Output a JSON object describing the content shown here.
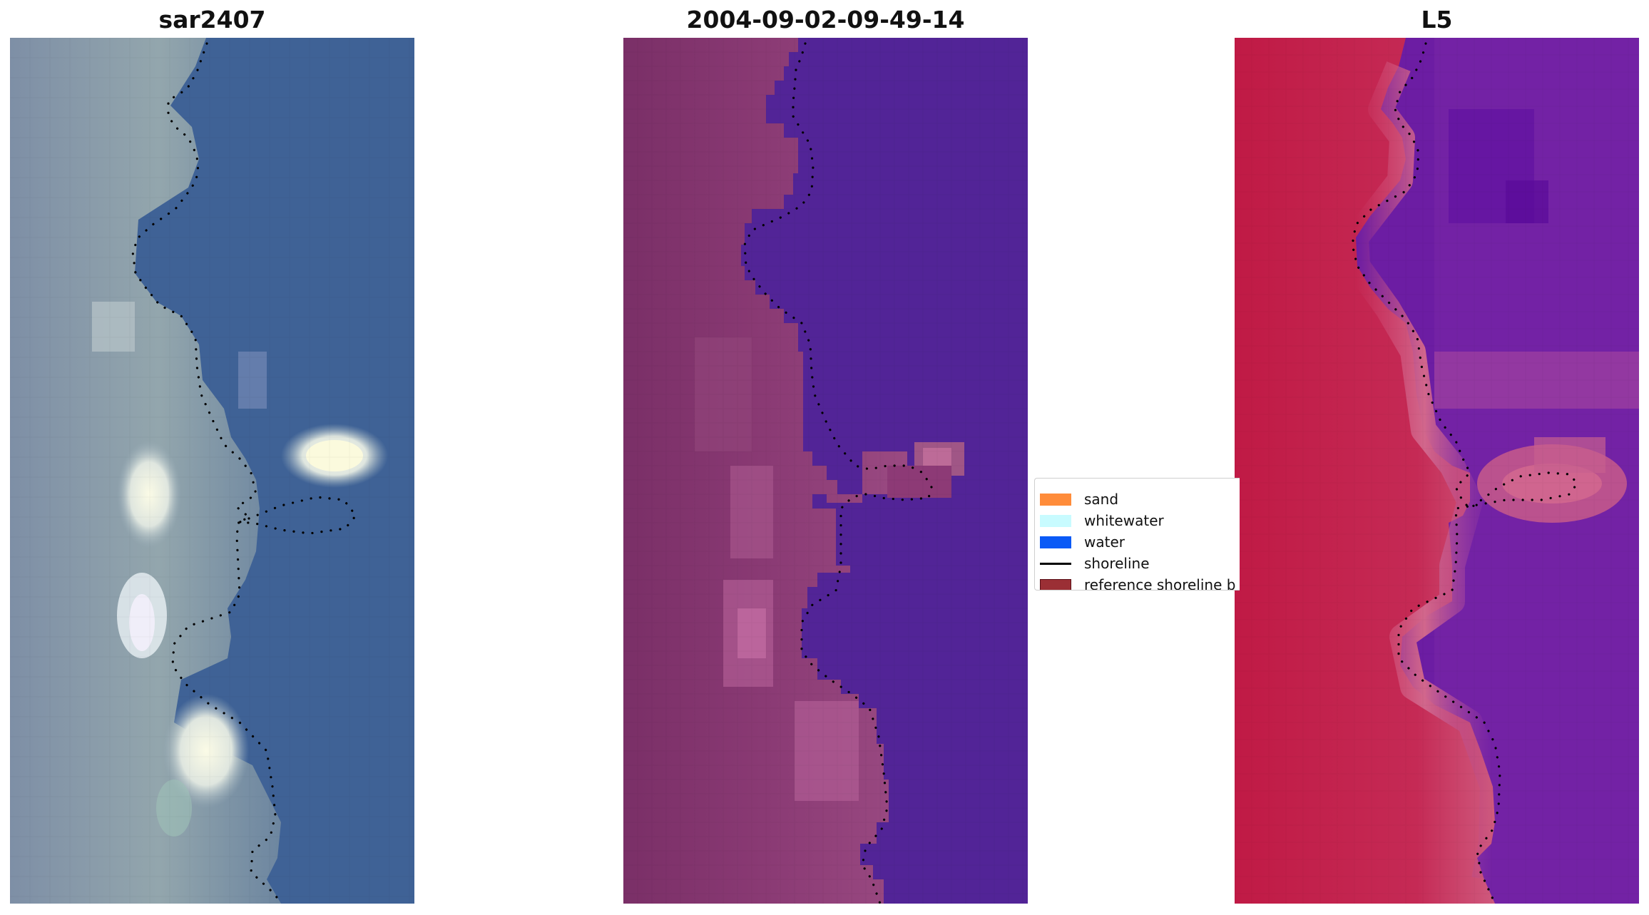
{
  "panels": [
    {
      "id": "rgb",
      "title": "sar2407",
      "icon": "rgb-satellite-image"
    },
    {
      "id": "classified",
      "title": "2004-09-02-09-49-14",
      "icon": "classified-image"
    },
    {
      "id": "index",
      "title": "L5",
      "icon": "water-index-image"
    }
  ],
  "legend": {
    "items": [
      {
        "label": "sand",
        "color": "#ff8c3a",
        "kind": "patch"
      },
      {
        "label": "whitewater",
        "color": "#c8fbff",
        "kind": "patch"
      },
      {
        "label": "water",
        "color": "#0a5af6",
        "kind": "patch"
      },
      {
        "label": "shoreline",
        "color": "#000000",
        "kind": "line"
      },
      {
        "label": "reference shoreline b",
        "color": "#9b2f35",
        "kind": "patch"
      }
    ]
  },
  "colors": {
    "rgb_land": "#8a9aa8",
    "rgb_water": "#3f6296",
    "class_land": "#7f306a",
    "class_water": "#522497",
    "index_land": "#c41c49",
    "index_water": "#6c1da3"
  }
}
